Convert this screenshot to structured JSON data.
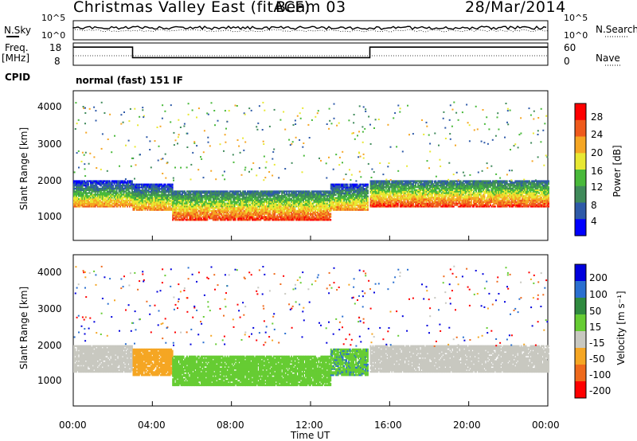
{
  "header": {
    "title": "Christmas Valley East (fitACF)",
    "beam": "Beam 03",
    "date": "28/Mar/2014"
  },
  "top_panels": {
    "nsky_label": "N.Sky",
    "nsearch_label": "N.Search",
    "noise_ticks": [
      "10^5",
      "10^0"
    ],
    "freq_label_line1": "Freq.",
    "freq_label_line2": "[MHz]",
    "freq_ticks": [
      "18",
      "8"
    ],
    "nave_label": "Nave",
    "nave_ticks": [
      "60",
      "0"
    ],
    "cpid_label": "CPID",
    "cpid_value": "normal (fast) 151 IF"
  },
  "axes": {
    "ylabel": "Slant Range [km]",
    "xlabel": "Time UT",
    "x_ticks": [
      "00:00",
      "04:00",
      "08:00",
      "12:00",
      "16:00",
      "20:00",
      "00:00"
    ],
    "y_ticks": [
      "4000",
      "3000",
      "2000",
      "1000"
    ]
  },
  "power_colorbar": {
    "label": "Power [dB]",
    "ticks": [
      "28",
      "24",
      "20",
      "16",
      "12",
      "8",
      "4"
    ],
    "colors": [
      "#0000ff",
      "#2e5aa8",
      "#3f8a5a",
      "#49b93a",
      "#e8e832",
      "#f5a623",
      "#ef5a1c",
      "#ff0000"
    ]
  },
  "velocity_colorbar": {
    "label": "Velocity [m s⁻¹]",
    "ticks": [
      "200",
      "100",
      "50",
      "15",
      "-15",
      "-50",
      "-100",
      "-200"
    ],
    "colors": [
      "#0000dd",
      "#2a6fd0",
      "#2f8a3f",
      "#66cc33",
      "#c8c8c0",
      "#f5a623",
      "#ef6a1c",
      "#ff0000"
    ]
  },
  "chart_data": {
    "type": "heatmap",
    "x_range_hours": [
      0,
      24
    ],
    "y_range_km": [
      0,
      4500
    ],
    "frequency_MHz": [
      {
        "start": "00:00",
        "end": "03:00",
        "value": 17
      },
      {
        "start": "03:00",
        "end": "15:00",
        "value": 11
      },
      {
        "start": "15:00",
        "end": "24:00",
        "value": 17
      }
    ],
    "power_bands": [
      {
        "start_h": 0.0,
        "end_h": 3.0,
        "low_km": 1000,
        "high_km": 1800,
        "dB": 24
      },
      {
        "start_h": 3.0,
        "end_h": 5.0,
        "low_km": 900,
        "high_km": 1700,
        "dB": 24
      },
      {
        "start_h": 5.0,
        "end_h": 13.0,
        "low_km": 600,
        "high_km": 1500,
        "dB": 28
      },
      {
        "start_h": 13.0,
        "end_h": 14.9,
        "low_km": 900,
        "high_km": 1700,
        "dB": 24
      },
      {
        "start_h": 15.0,
        "end_h": 24.0,
        "low_km": 1000,
        "high_km": 1800,
        "dB": 28
      }
    ],
    "velocity_bands": [
      {
        "start_h": 0.0,
        "end_h": 3.0,
        "low_km": 1000,
        "high_km": 1800,
        "ms": 0
      },
      {
        "start_h": 3.0,
        "end_h": 5.0,
        "low_km": 900,
        "high_km": 1700,
        "ms": -30
      },
      {
        "start_h": 5.0,
        "end_h": 13.0,
        "low_km": 600,
        "high_km": 1500,
        "ms": 30
      },
      {
        "start_h": 13.0,
        "end_h": 14.9,
        "low_km": 900,
        "high_km": 1700,
        "ms": 40
      },
      {
        "start_h": 15.0,
        "end_h": 24.0,
        "low_km": 1000,
        "high_km": 1800,
        "ms": 0
      }
    ]
  }
}
